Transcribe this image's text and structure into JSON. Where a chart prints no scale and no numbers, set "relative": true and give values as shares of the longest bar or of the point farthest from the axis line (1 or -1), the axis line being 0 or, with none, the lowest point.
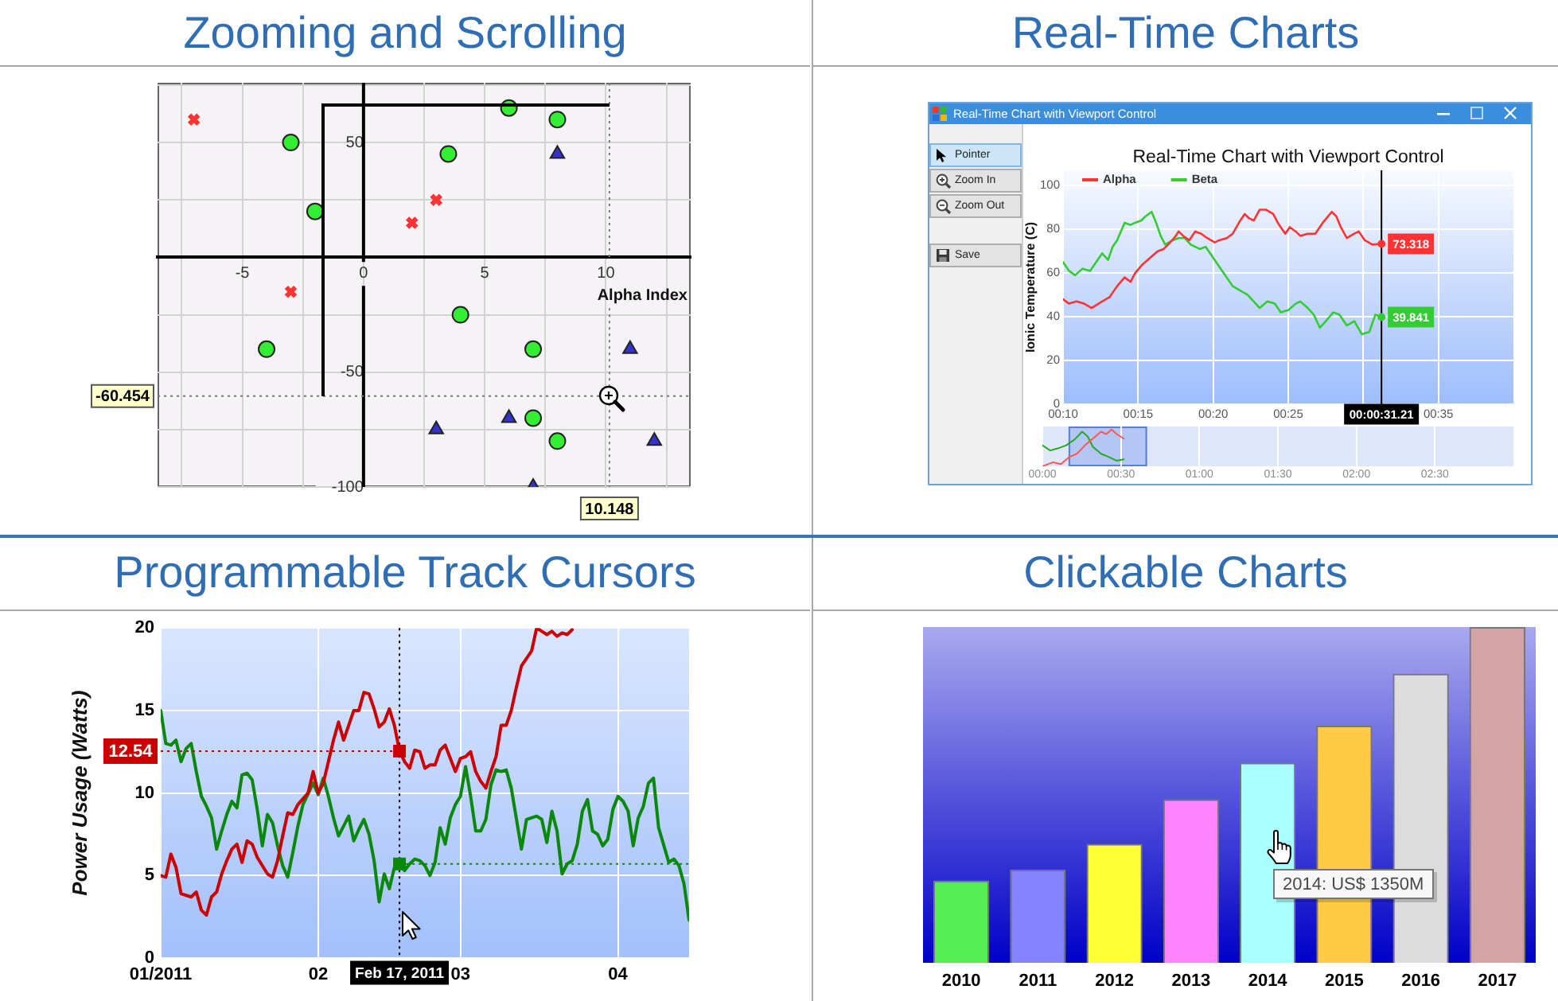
{
  "chart_data": [
    {
      "type": "scatter",
      "title": "Zooming and Scrolling",
      "xlabel": "Alpha Index",
      "xlim": [
        -8.5,
        13.5
      ],
      "ylim": [
        -100,
        76
      ],
      "xticks": [
        {
          "value": -7.5,
          "label": null
        },
        -5,
        {
          "value": -2.5,
          "label": null
        },
        0,
        {
          "value": 2.5,
          "label": null
        },
        5,
        {
          "value": 7.5,
          "label": null
        },
        10,
        {
          "value": 12.5,
          "label": null
        }
      ],
      "yticks": [
        {
          "value": 75,
          "label": null
        },
        50,
        {
          "value": 25,
          "label": null
        },
        {
          "value": 0,
          "label": null
        },
        {
          "value": -25,
          "label": null
        },
        -50,
        {
          "value": -75,
          "label": null
        },
        -100
      ],
      "grid": true,
      "series": [
        {
          "color": "#ff3333",
          "marker": "cross",
          "x": [
            -7,
            3,
            2,
            -3
          ],
          "values": [
            60,
            25,
            15,
            -15
          ]
        },
        {
          "color": "#33ee33",
          "marker": "circle",
          "x": [
            -3,
            -2,
            6,
            8,
            3.5,
            4,
            -4,
            7,
            7,
            8
          ],
          "values": [
            50,
            20,
            65,
            60,
            45,
            -25,
            -40,
            -40,
            -70,
            -80
          ]
        },
        {
          "color": "#3333cc",
          "marker": "triangle",
          "x": [
            8,
            11,
            6,
            3,
            12,
            7
          ],
          "values": [
            45,
            -40,
            -70,
            -75,
            -80,
            -100
          ]
        }
      ],
      "ref_lines": [
        {
          "axis": "x",
          "value": 10.148,
          "label": "10.148",
          "line_style": "dotted"
        },
        {
          "axis": "y",
          "value": -60.454,
          "label": "-60.454",
          "line_style": "dotted"
        }
      ]
    },
    {
      "type": "line",
      "title": "Real-Time Charts",
      "subtitle": "Real-Time Chart with Viewport Control",
      "ylabel": "Ionic Temperature (C)",
      "annotations": [
        "Real-Time Chart with Viewport Control",
        "Pointer",
        "Zoom In",
        "Zoom Out",
        "Save"
      ],
      "xlim": [
        10,
        40
      ],
      "xticks": [
        {
          "value": 10,
          "label": "00:10"
        },
        {
          "value": 15,
          "label": "00:15"
        },
        {
          "value": 20,
          "label": "00:20"
        },
        {
          "value": 25,
          "label": "00:25"
        },
        {
          "value": 30,
          "label": null
        },
        {
          "value": 35,
          "label": "00:35"
        }
      ],
      "ylim": [
        0,
        107
      ],
      "yticks": [
        0,
        20,
        40,
        60,
        80,
        100
      ],
      "grid": true,
      "legend": "top left",
      "series": [
        {
          "name": "Alpha",
          "color": "#ff3333",
          "x": [
            10,
            10.4,
            10.9,
            11.4,
            11.9,
            12.6,
            13.1,
            13.6,
            14.1,
            14.5,
            14.8,
            15.3,
            15.8,
            16.3,
            16.7,
            17,
            17.4,
            17.7,
            18,
            18.4,
            18.8,
            19.2,
            19.6,
            20.1,
            20.4,
            20.9,
            21.3,
            21.8,
            22.1,
            22.4,
            22.7,
            23.1,
            23.5,
            24,
            24.3,
            24.8,
            25.1,
            25.5,
            25.8,
            26.3,
            26.8,
            27.3,
            27.9,
            28.2,
            28.5,
            28.9,
            29.4,
            29.7,
            30.1,
            30.6,
            31.21
          ],
          "values": [
            48,
            46,
            47,
            46,
            44,
            47,
            49,
            54,
            58,
            56,
            60,
            64,
            67,
            70,
            71,
            73,
            76,
            79,
            77,
            75,
            79,
            78,
            76,
            74,
            75,
            76,
            78,
            84,
            87,
            85,
            84,
            89,
            89,
            87,
            83,
            78,
            81,
            79,
            77,
            78,
            78,
            83,
            88,
            86,
            81,
            76,
            78,
            79,
            75,
            73,
            73.318
          ],
          "value_labels": [
            null,
            null,
            null,
            null,
            null,
            null,
            null,
            null,
            null,
            null,
            null,
            null,
            null,
            null,
            null,
            null,
            null,
            null,
            null,
            null,
            null,
            null,
            null,
            null,
            null,
            null,
            null,
            null,
            null,
            null,
            null,
            null,
            null,
            null,
            null,
            null,
            null,
            null,
            null,
            null,
            null,
            null,
            null,
            null,
            null,
            null,
            null,
            null,
            null,
            null,
            "73.318"
          ]
        },
        {
          "name": "Beta",
          "color": "#33cc33",
          "x": [
            10,
            10.4,
            10.8,
            11.3,
            11.8,
            12.1,
            12.6,
            13,
            13.3,
            13.6,
            14.1,
            14.5,
            14.8,
            15.2,
            15.5,
            15.9,
            16.2,
            16.5,
            16.8,
            17.3,
            17.7,
            18.1,
            18.5,
            19.1,
            19.5,
            19.8,
            20.2,
            20.7,
            21.3,
            21.8,
            22.3,
            22.7,
            23.1,
            23.6,
            24.1,
            24.5,
            25,
            25.5,
            25.8,
            26.3,
            26.7,
            27.1,
            27.5,
            28,
            28.4,
            28.9,
            29.4,
            29.9,
            30.4,
            30.8,
            31.21
          ],
          "values": [
            65,
            61,
            59,
            62,
            61,
            64,
            69,
            66,
            72,
            75,
            83,
            82,
            83,
            84,
            86,
            88,
            83,
            77,
            73,
            75,
            76,
            76,
            73,
            71,
            72,
            69,
            65,
            60,
            54,
            52,
            50,
            47,
            44,
            47,
            46,
            42,
            43,
            46,
            47,
            44,
            41,
            35,
            38,
            42,
            41,
            36,
            38,
            32,
            33,
            41,
            39.841
          ],
          "value_labels": [
            null,
            null,
            null,
            null,
            null,
            null,
            null,
            null,
            null,
            null,
            null,
            null,
            null,
            null,
            null,
            null,
            null,
            null,
            null,
            null,
            null,
            null,
            null,
            null,
            null,
            null,
            null,
            null,
            null,
            null,
            null,
            null,
            null,
            null,
            null,
            null,
            null,
            null,
            null,
            null,
            null,
            null,
            null,
            null,
            null,
            null,
            null,
            null,
            null,
            null,
            "39.841"
          ]
        }
      ],
      "ref_lines": [
        {
          "axis": "x",
          "value": 31.21,
          "label": "00:00:31.21",
          "color": "#000000"
        }
      ]
    },
    {
      "type": "line",
      "relative": true,
      "xlim": [
        0,
        180
      ],
      "xticks": [
        {
          "value": 0,
          "label": "00:00"
        },
        {
          "value": 30,
          "label": "00:30"
        },
        {
          "value": 60,
          "label": "01:00"
        },
        {
          "value": 90,
          "label": "01:30"
        },
        {
          "value": 120,
          "label": "02:00"
        },
        {
          "value": 150,
          "label": "02:30"
        }
      ],
      "grid": "x",
      "bands": [
        {
          "axis": "x",
          "from": 10,
          "to": 40,
          "color": "#b4c6f5"
        }
      ],
      "series": [
        {
          "color": "#ff5555",
          "x": [
            0,
            4.1,
            7.1,
            10.2,
            13.2,
            16.3,
            19.3,
            22.4,
            24.4,
            26.4,
            28.5,
            31.1
          ],
          "values": [
            0,
            0.11,
            0.06,
            0.25,
            0.34,
            0.57,
            0.75,
            0.94,
            0.87,
            1,
            0.87,
            0.75
          ]
        },
        {
          "color": "#22aa22",
          "x": [
            0,
            3,
            6.1,
            9.1,
            12.2,
            15.2,
            17.3,
            19.3,
            22.4,
            25.4,
            28.5,
            31.1
          ],
          "values": [
            0.57,
            0.43,
            0.49,
            0.57,
            0.72,
            0.94,
            0.81,
            0.53,
            0.34,
            0.25,
            0.15,
            0.19
          ]
        }
      ]
    },
    {
      "type": "line",
      "title": "Programmable Track Cursors",
      "ylabel": "Power Usage (Watts)",
      "xlim": [
        "2011-01-01",
        "2011-04-15"
      ],
      "xticks": [
        {
          "value": "2011-01-01",
          "label": "01/2011"
        },
        {
          "value": "2011-02-01",
          "label": "02"
        },
        {
          "value": "2011-03-01",
          "label": "03"
        },
        {
          "value": "2011-04-01",
          "label": "04"
        }
      ],
      "ylim": [
        0,
        20
      ],
      "yticks": [
        0,
        5,
        10,
        15,
        20
      ],
      "grid": true,
      "series": [
        {
          "color": "#cc0000",
          "x": [
            "2011-01-01",
            "2011-01-02",
            "2011-01-03",
            "2011-01-04",
            "2011-01-05",
            "2011-01-07",
            "2011-01-08",
            "2011-01-09",
            "2011-01-10",
            "2011-01-11",
            "2011-01-12",
            "2011-01-13",
            "2011-01-14",
            "2011-01-15",
            "2011-01-16",
            "2011-01-17",
            "2011-01-18",
            "2011-01-19",
            "2011-01-20",
            "2011-01-22",
            "2011-01-23",
            "2011-01-24",
            "2011-01-25",
            "2011-01-26",
            "2011-01-27",
            "2011-01-28",
            "2011-01-30",
            "2011-01-31",
            "2011-02-01",
            "2011-02-02",
            "2011-02-03",
            "2011-02-04",
            "2011-02-05",
            "2011-02-06",
            "2011-02-07",
            "2011-02-08",
            "2011-02-09",
            "2011-02-10",
            "2011-02-11",
            "2011-02-12",
            "2011-02-13",
            "2011-02-14",
            "2011-02-15",
            "2011-02-16",
            "2011-02-17",
            "2011-02-18",
            "2011-02-19",
            "2011-02-20",
            "2011-02-21",
            "2011-02-22",
            "2011-02-23",
            "2011-02-24",
            "2011-02-25",
            "2011-02-26",
            "2011-02-27",
            "2011-02-28",
            "2011-03-01",
            "2011-03-02",
            "2011-03-03",
            "2011-03-04",
            "2011-03-05",
            "2011-03-06",
            "2011-03-07",
            "2011-03-08",
            "2011-03-09",
            "2011-03-10",
            "2011-03-11",
            "2011-03-12",
            "2011-03-13",
            "2011-03-15",
            "2011-03-16",
            "2011-03-17",
            "2011-03-18",
            "2011-03-19",
            "2011-03-20",
            "2011-03-21",
            "2011-03-22",
            "2011-03-23"
          ],
          "values": [
            5.0,
            4.9,
            6.3,
            5.5,
            3.9,
            3.7,
            4.0,
            2.9,
            2.6,
            3.7,
            4.0,
            5.1,
            5.9,
            6.6,
            6.9,
            5.8,
            7.1,
            6.9,
            6.1,
            5.1,
            4.9,
            5.9,
            7.4,
            8.8,
            8.7,
            9.3,
            10.0,
            11.3,
            10.0,
            10.6,
            11.9,
            13.2,
            14.3,
            13.2,
            14.1,
            15.0,
            15.0,
            16.1,
            16.0,
            15.1,
            14.0,
            14.3,
            15.1,
            14.1,
            12.54,
            11.9,
            11.5,
            12.6,
            12.5,
            11.5,
            11.7,
            11.7,
            12.6,
            12.9,
            12.1,
            11.3,
            12.1,
            12.2,
            12.5,
            11.3,
            10.7,
            10.3,
            11.3,
            12.2,
            14.1,
            14.1,
            15.0,
            16.4,
            17.7,
            18.6,
            20.0,
            19.8,
            19.6,
            19.8,
            19.5,
            19.7,
            19.6,
            19.9
          ]
        },
        {
          "color": "#0a880a",
          "x": [
            "2011-01-01",
            "2011-01-02",
            "2011-01-03",
            "2011-01-04",
            "2011-01-05",
            "2011-01-06",
            "2011-01-07",
            "2011-01-08",
            "2011-01-09",
            "2011-01-10",
            "2011-01-11",
            "2011-01-12",
            "2011-01-13",
            "2011-01-14",
            "2011-01-15",
            "2011-01-16",
            "2011-01-17",
            "2011-01-18",
            "2011-01-19",
            "2011-01-20",
            "2011-01-21",
            "2011-01-22",
            "2011-01-23",
            "2011-01-24",
            "2011-01-25",
            "2011-01-26",
            "2011-01-27",
            "2011-01-28",
            "2011-01-29",
            "2011-01-31",
            "2011-02-01",
            "2011-02-02",
            "2011-02-03",
            "2011-02-04",
            "2011-02-05",
            "2011-02-06",
            "2011-02-07",
            "2011-02-08",
            "2011-02-09",
            "2011-02-10",
            "2011-02-11",
            "2011-02-12",
            "2011-02-13",
            "2011-02-14",
            "2011-02-15",
            "2011-02-16",
            "2011-02-17",
            "2011-02-18",
            "2011-02-19",
            "2011-02-20",
            "2011-02-21",
            "2011-02-22",
            "2011-02-23",
            "2011-02-24",
            "2011-02-25",
            "2011-02-26",
            "2011-02-27",
            "2011-02-28",
            "2011-03-01",
            "2011-03-02",
            "2011-03-03",
            "2011-03-04",
            "2011-03-05",
            "2011-03-06",
            "2011-03-07",
            "2011-03-08",
            "2011-03-09",
            "2011-03-10",
            "2011-03-11",
            "2011-03-13",
            "2011-03-14",
            "2011-03-16",
            "2011-03-17",
            "2011-03-18",
            "2011-03-19",
            "2011-03-20",
            "2011-03-21",
            "2011-03-22",
            "2011-03-23",
            "2011-03-24",
            "2011-03-25",
            "2011-03-26",
            "2011-03-27",
            "2011-03-28",
            "2011-03-29",
            "2011-03-30",
            "2011-03-31",
            "2011-04-01",
            "2011-04-02",
            "2011-04-03",
            "2011-04-04",
            "2011-04-05",
            "2011-04-06",
            "2011-04-07",
            "2011-04-08",
            "2011-04-09",
            "2011-04-11",
            "2011-04-12",
            "2011-04-13",
            "2011-04-14",
            "2011-04-15"
          ],
          "values": [
            15.0,
            13.0,
            12.9,
            13.2,
            11.9,
            12.7,
            13.0,
            11.3,
            9.8,
            9.2,
            8.5,
            6.6,
            7.7,
            8.7,
            9.5,
            9.1,
            11.1,
            11.2,
            10.8,
            9.0,
            6.8,
            8.7,
            8.2,
            6.8,
            5.6,
            4.9,
            6.4,
            8.0,
            9.3,
            10.6,
            9.9,
            10.9,
            9.8,
            8.5,
            7.4,
            8.0,
            8.6,
            7.1,
            7.8,
            8.4,
            7.5,
            5.9,
            3.4,
            5.1,
            4.2,
            5.5,
            5.7,
            5.3,
            5.7,
            6.0,
            5.9,
            5.6,
            5.0,
            5.8,
            7.9,
            6.9,
            8.5,
            9.3,
            9.8,
            11.6,
            9.8,
            7.7,
            7.7,
            8.4,
            10.5,
            11.4,
            11.3,
            11.4,
            10.3,
            6.6,
            8.4,
            8.6,
            8.4,
            7.0,
            8.9,
            7.7,
            5.1,
            5.7,
            5.9,
            6.9,
            8.9,
            9.6,
            7.7,
            7.5,
            6.8,
            7.2,
            9.0,
            9.8,
            9.5,
            8.9,
            6.8,
            8.5,
            9.2,
            10.6,
            10.9,
            7.9,
            5.8,
            6.0,
            5.6,
            4.5,
            2.3
          ]
        }
      ],
      "ref_lines": [
        {
          "axis": "x",
          "value": "2011-02-17",
          "label": "Feb 17, 2011",
          "color": "#000000",
          "line_style": "dotted"
        },
        {
          "axis": "y",
          "value": 12.54,
          "label": "12.54",
          "color": "#cc0000",
          "line_style": "dotted"
        },
        {
          "axis": "y",
          "value": 5.7,
          "color": "#0a880a",
          "line_style": "dotted"
        }
      ]
    },
    {
      "type": "bar",
      "title": "Clickable Charts",
      "relative": true,
      "categories": [
        "2010",
        "2011",
        "2012",
        "2013",
        "2014",
        "2015",
        "2016",
        "2017"
      ],
      "values": [
        0.245,
        0.278,
        0.354,
        0.487,
        0.596,
        0.706,
        0.861,
        1
      ],
      "colors": [
        "#55ee55",
        "#8484ff",
        "#ffff33",
        "#ff84ff",
        "#a8ffff",
        "#ffcc44",
        "#dcdcdc",
        "#d4a4a4"
      ],
      "annotations": [
        "2014: US$ 1350M"
      ]
    }
  ]
}
